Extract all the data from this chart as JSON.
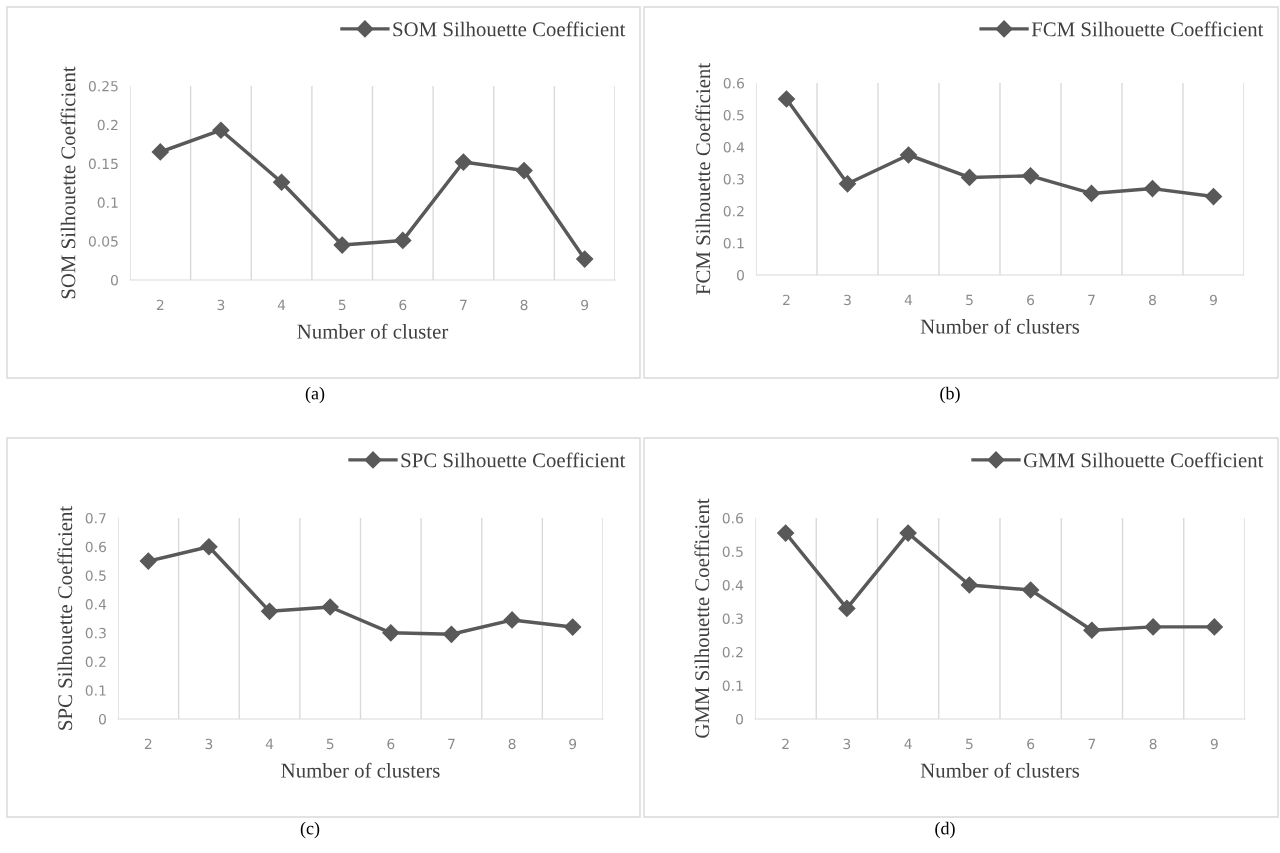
{
  "chart_data": [
    {
      "type": "line",
      "xlabel": "Number of cluster",
      "ylabel": "SOM Silhouette Coefficient",
      "categories": [
        "2",
        "3",
        "4",
        "5",
        "6",
        "7",
        "8",
        "9"
      ],
      "series": [
        {
          "name": "SOM Silhouette Coefficient",
          "color": "#595959",
          "values": [
            0.165,
            0.193,
            0.126,
            0.045,
            0.051,
            0.152,
            0.141,
            0.027
          ]
        }
      ],
      "ylim": [
        0,
        0.25
      ],
      "yticks": [
        {
          "value": 0,
          "label": "0"
        },
        {
          "value": 0.05,
          "label": "0.05"
        },
        {
          "value": 0.1,
          "label": "0.1"
        },
        {
          "value": 0.15,
          "label": "0.15"
        },
        {
          "value": 0.2,
          "label": "0.2"
        },
        {
          "value": 0.25,
          "label": "0.25"
        }
      ],
      "grid": "x",
      "legend": "top right",
      "marker": "diamond",
      "line_style": "solid",
      "annotations": [
        "(a)"
      ]
    },
    {
      "type": "line",
      "xlabel": "Number of clusters",
      "ylabel": "FCM Silhouette Coefficient",
      "categories": [
        "2",
        "3",
        "4",
        "5",
        "6",
        "7",
        "8",
        "9"
      ],
      "series": [
        {
          "name": "FCM Silhouette Coefficient",
          "color": "#595959",
          "values": [
            0.55,
            0.285,
            0.375,
            0.305,
            0.31,
            0.255,
            0.27,
            0.245
          ]
        }
      ],
      "ylim": [
        0,
        0.6
      ],
      "yticks": [
        0,
        0.1,
        0.2,
        0.3,
        0.4,
        0.5,
        0.6
      ],
      "grid": "x",
      "legend": "top right",
      "marker": "diamond",
      "line_style": "solid",
      "annotations": [
        "(b)"
      ]
    },
    {
      "type": "line",
      "xlabel": "Number of clusters",
      "ylabel": "SPC Silhouette Coefficient",
      "categories": [
        "2",
        "3",
        "4",
        "5",
        "6",
        "7",
        "8",
        "9"
      ],
      "series": [
        {
          "name": "SPC Silhouette Coefficient",
          "color": "#595959",
          "values": [
            0.55,
            0.6,
            0.375,
            0.39,
            0.3,
            0.295,
            0.345,
            0.32
          ]
        }
      ],
      "ylim": [
        0,
        0.7
      ],
      "yticks": [
        0,
        0.1,
        0.2,
        0.3,
        0.4,
        0.5,
        0.6,
        0.7
      ],
      "grid": "x",
      "legend": "top right",
      "marker": "diamond",
      "line_style": "solid",
      "annotations": [
        "(c)"
      ]
    },
    {
      "type": "line",
      "xlabel": "Number of clusters",
      "ylabel": "GMM Silhouette Coefficient",
      "categories": [
        "2",
        "3",
        "4",
        "5",
        "6",
        "7",
        "8",
        "9"
      ],
      "series": [
        {
          "name": "GMM Silhouette Coefficient",
          "color": "#595959",
          "values": [
            0.555,
            0.33,
            0.555,
            0.4,
            0.385,
            0.265,
            0.275,
            0.275
          ]
        }
      ],
      "ylim": [
        0,
        0.6
      ],
      "yticks": [
        0,
        0.1,
        0.2,
        0.3,
        0.4,
        0.5,
        0.6
      ],
      "grid": "x",
      "legend": "top right",
      "marker": "diamond",
      "line_style": "solid",
      "annotations": [
        "(d)"
      ]
    }
  ]
}
